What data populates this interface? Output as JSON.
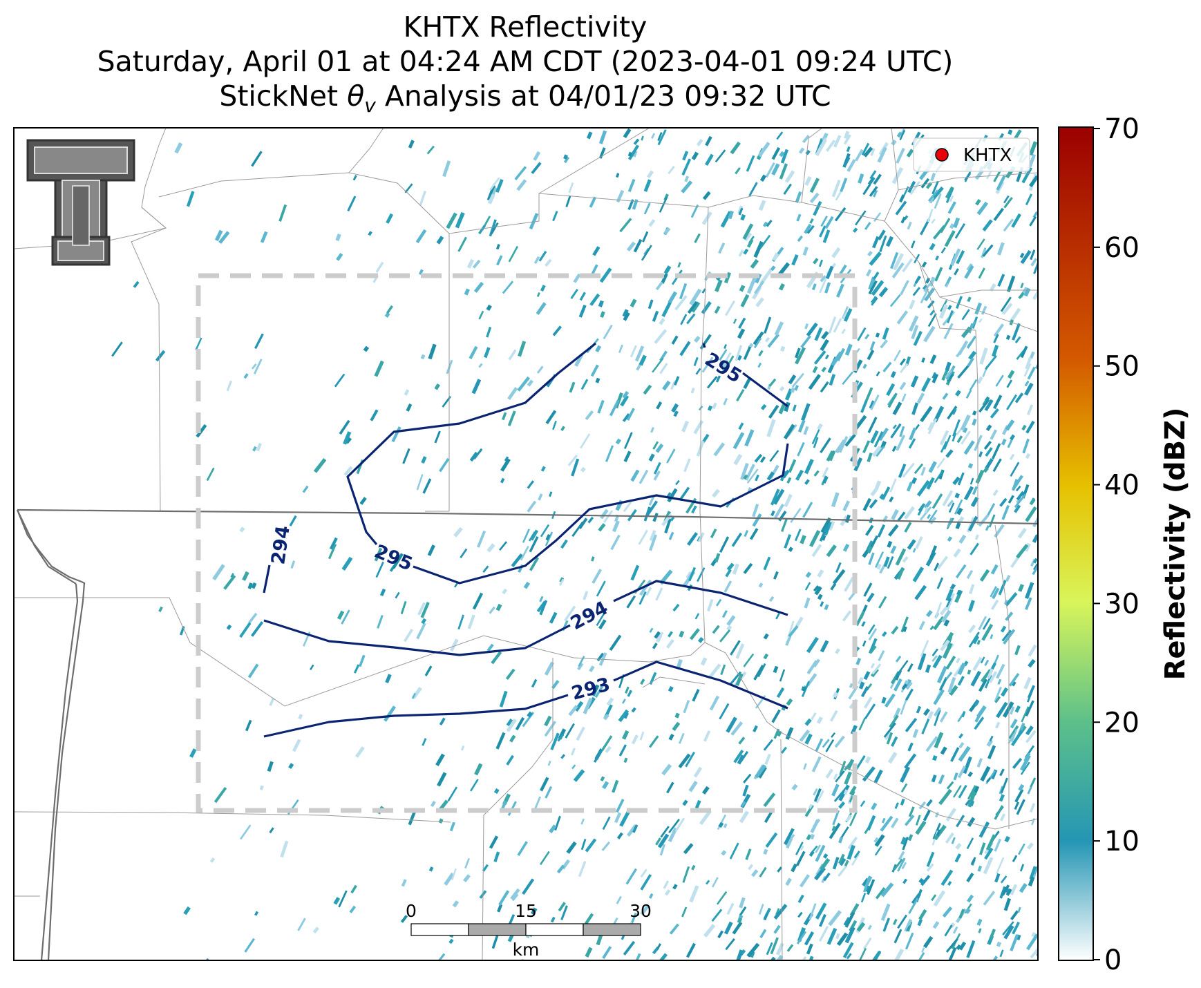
{
  "title": {
    "line1": "KHTX Reflectivity",
    "line2": "Saturday, April 01 at 04:24 AM CDT (2023-04-01 09:24 UTC)",
    "line3_prefix": "StickNet ",
    "line3_symbol": "θ",
    "line3_subscript": "v",
    "line3_suffix": " Analysis at 04/01/23 09:32 UTC"
  },
  "legend": {
    "label": "KHTX",
    "marker_color": "#e8000b"
  },
  "colorbar": {
    "label": "Reflectivity (dBZ)",
    "min": 0,
    "max": 70,
    "ticks": [
      "0",
      "10",
      "20",
      "30",
      "40",
      "50",
      "60",
      "70"
    ],
    "colors": [
      "#ffffff",
      "#2596b4",
      "#5cc08a",
      "#d9f55a",
      "#e6c000",
      "#d45a00",
      "#9b0000"
    ]
  },
  "scale_bar": {
    "labels": [
      "0",
      "15",
      "30"
    ],
    "unit": "km"
  },
  "contours": {
    "color": "#0a2472",
    "labels": [
      "295",
      "295",
      "294",
      "294",
      "293"
    ]
  },
  "logo": {
    "name": "Texas Tech double-T logo"
  }
}
